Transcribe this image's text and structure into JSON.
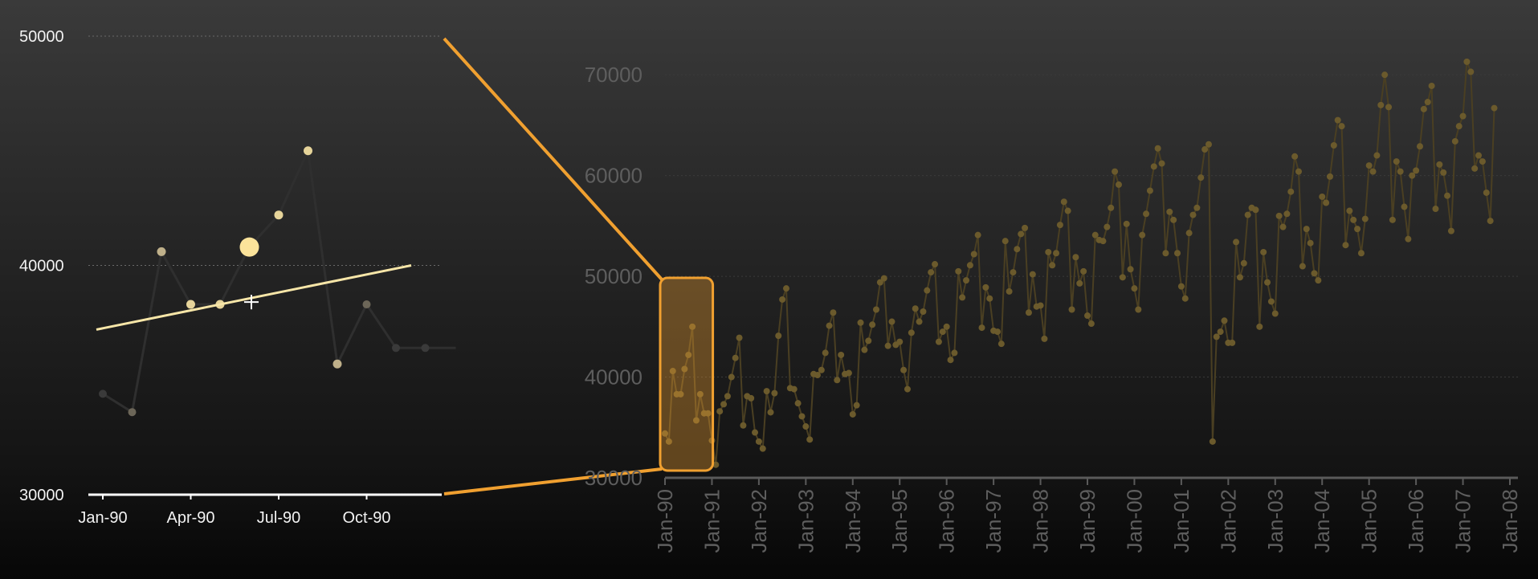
{
  "chart_data": [
    {
      "type": "line",
      "name": "detail",
      "x": [
        "Jan-90",
        "Feb-90",
        "Mar-90",
        "Apr-90",
        "May-90",
        "Jun-90",
        "Jul-90",
        "Aug-90",
        "Sep-90",
        "Oct-90",
        "Nov-90",
        "Dec-90"
      ],
      "values": [
        34400,
        33600,
        40600,
        38300,
        38300,
        40800,
        42200,
        45000,
        35700,
        38300,
        36400,
        36400
      ],
      "highlighted_index": 5,
      "trendline": {
        "from": [
          "Jan-90",
          37200
        ],
        "to": [
          "Dec-90",
          40000
        ]
      },
      "crosshair": {
        "x": "Jun-90",
        "y": 38400
      },
      "x_tick_labels": [
        "Jan-90",
        "Apr-90",
        "Jul-90",
        "Oct-90"
      ],
      "y_ticks": [
        30000,
        40000,
        50000
      ],
      "ylim": [
        30000,
        50000
      ],
      "grid": "horizontal dotted"
    },
    {
      "type": "line",
      "name": "overview",
      "start": "Jan-90",
      "frequency": "monthly",
      "values": [
        34400,
        33600,
        40600,
        38300,
        38300,
        40800,
        42200,
        45000,
        35700,
        38300,
        36400,
        36400,
        33700,
        31300,
        36600,
        37300,
        38100,
        40000,
        41900,
        43900,
        35200,
        38100,
        37900,
        34500,
        33600,
        32900,
        38600,
        36500,
        38400,
        44100,
        47700,
        48800,
        38900,
        38800,
        37400,
        36100,
        35100,
        33800,
        40300,
        40200,
        40700,
        42400,
        45100,
        46400,
        39700,
        42200,
        40300,
        40400,
        36300,
        37200,
        45400,
        42700,
        43600,
        45200,
        46700,
        49400,
        49800,
        43100,
        45500,
        43200,
        43500,
        40700,
        38800,
        44400,
        46800,
        45500,
        46500,
        48600,
        50400,
        51200,
        43500,
        44500,
        45000,
        41700,
        42400,
        50500,
        47900,
        49600,
        51100,
        52200,
        54100,
        44900,
        48900,
        47800,
        44600,
        44500,
        43300,
        53500,
        48500,
        50400,
        52700,
        54200,
        54800,
        46400,
        50200,
        47000,
        47100,
        43800,
        52400,
        51100,
        52300,
        55100,
        57400,
        56500,
        46700,
        51900,
        49300,
        50500,
        46100,
        45300,
        54100,
        53600,
        53500,
        54900,
        56800,
        60400,
        59100,
        49900,
        55200,
        50700,
        48800,
        46700,
        54100,
        56200,
        58500,
        60900,
        62700,
        61200,
        52300,
        56400,
        55600,
        52300,
        49000,
        47800,
        54300,
        56100,
        56800,
        59800,
        62600,
        63100,
        33600,
        44000,
        44500,
        45600,
        43400,
        43400,
        53400,
        49900,
        51300,
        56100,
        56800,
        56600,
        45000,
        52400,
        49400,
        47500,
        46300,
        56000,
        54900,
        56200,
        58400,
        61900,
        60400,
        51000,
        54700,
        53300,
        50300,
        49600,
        57900,
        57300,
        59900,
        63000,
        65500,
        64900,
        53100,
        56500,
        55600,
        54700,
        52300,
        55700,
        61000,
        60400,
        62000,
        67000,
        70000,
        66800,
        55600,
        61400,
        60400,
        56900,
        53700,
        60000,
        60500,
        62900,
        66600,
        67300,
        68900,
        56700,
        61100,
        60300,
        58000,
        54500,
        63400,
        64900,
        65900,
        71300,
        70300,
        60700,
        62000,
        61400,
        58300,
        55500,
        66700
      ],
      "x_tick_labels": [
        "Jan-90",
        "Jan-91",
        "Jan-92",
        "Jan-93",
        "Jan-94",
        "Jan-95",
        "Jan-96",
        "Jan-97",
        "Jan-98",
        "Jan-99",
        "Jan-00",
        "Jan-01",
        "Jan-02",
        "Jan-03",
        "Jan-04",
        "Jan-05",
        "Jan-06",
        "Jan-07",
        "Jan-08"
      ],
      "y_ticks": [
        30000,
        40000,
        50000,
        60000,
        70000
      ],
      "ylim": [
        30000,
        74000
      ],
      "grid": "horizontal dotted",
      "selection": {
        "from": "Jan-90",
        "to": "Dec-90"
      }
    }
  ],
  "colors": {
    "accent": "#f0a030",
    "trendline": "#f7e6a8",
    "highlight": "#fbe39a",
    "detail_line": "#2f2f2f",
    "overview_line": "#4a3f22",
    "overview_point": "#6b5a2c",
    "axis_left": "#ffffff",
    "axis_right": "#5a5a5a"
  }
}
